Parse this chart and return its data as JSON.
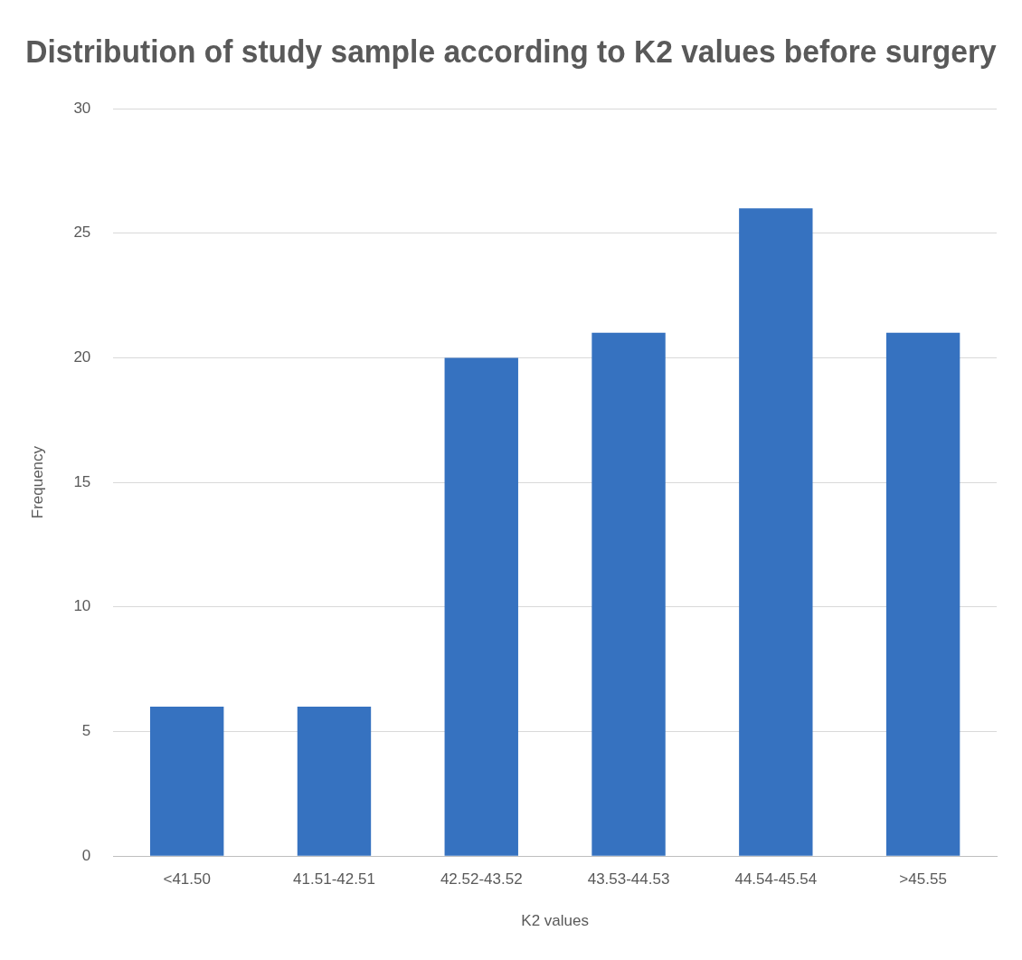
{
  "chart_data": {
    "type": "bar",
    "title": "Distribution of study sample according to K2 values before surgery",
    "xlabel": "K2 values",
    "ylabel": "Frequency",
    "categories": [
      "<41.50",
      "41.51-42.51",
      "42.52-43.52",
      "43.53-44.53",
      "44.54-45.54",
      ">45.55"
    ],
    "values": [
      6,
      6,
      20,
      21,
      26,
      21
    ],
    "color": "#3672c0",
    "ylim": [
      0,
      30
    ],
    "yticks": [
      0,
      5,
      10,
      15,
      20,
      25,
      30
    ],
    "grid": "y",
    "legend": false
  }
}
